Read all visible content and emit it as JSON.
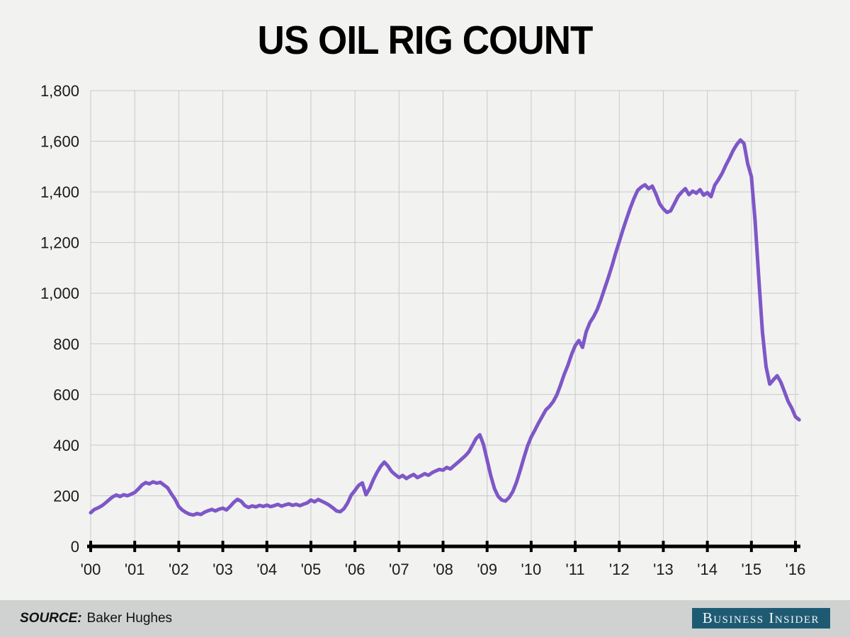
{
  "title": "US OIL RIG COUNT",
  "footer": {
    "source_label": "SOURCE:",
    "source_value": "Baker Hughes",
    "brand": "Business Insider"
  },
  "colors": {
    "background": "#f2f2f1",
    "grid": "#c9c9c9",
    "axis": "#000000",
    "line": "#7e57c7",
    "footer_bar": "#cfd2d1",
    "brand_bg": "#1e5b73",
    "brand_text": "#f3f6f6"
  },
  "chart_data": {
    "type": "line",
    "title": "US OIL RIG COUNT",
    "xlabel": "",
    "ylabel": "",
    "grid": true,
    "legend": "none",
    "source": "Baker Hughes",
    "ylim": [
      0,
      1800
    ],
    "xlim_years": [
      2000,
      2016.1
    ],
    "x_unit": "year",
    "x_tick_labels": [
      "'00",
      "'01",
      "'02",
      "'03",
      "'04",
      "'05",
      "'06",
      "'07",
      "'08",
      "'09",
      "'10",
      "'11",
      "'12",
      "'13",
      "'14",
      "'15",
      "'16"
    ],
    "y_ticks": [
      {
        "value": 0,
        "label": "0"
      },
      {
        "value": 200,
        "label": "200"
      },
      {
        "value": 400,
        "label": "400"
      },
      {
        "value": 600,
        "label": "600"
      },
      {
        "value": 800,
        "label": "800"
      },
      {
        "value": 1000,
        "label": "1,000"
      },
      {
        "value": 1200,
        "label": "1,200"
      },
      {
        "value": 1400,
        "label": "1,400"
      },
      {
        "value": 1600,
        "label": "1,600"
      },
      {
        "value": 1800,
        "label": "1,800"
      }
    ],
    "series": [
      {
        "name": "US oil rigs",
        "color": "#7e57c7",
        "x_start_year": 2000,
        "x_interval": "monthly",
        "values": [
          133,
          146,
          152,
          160,
          171,
          184,
          196,
          203,
          197,
          204,
          200,
          206,
          213,
          227,
          243,
          252,
          247,
          255,
          250,
          253,
          242,
          231,
          207,
          186,
          157,
          143,
          134,
          127,
          124,
          130,
          126,
          135,
          141,
          146,
          140,
          147,
          151,
          144,
          158,
          174,
          186,
          178,
          161,
          154,
          160,
          156,
          162,
          158,
          163,
          157,
          161,
          166,
          159,
          164,
          168,
          162,
          166,
          161,
          167,
          172,
          183,
          176,
          185,
          178,
          171,
          163,
          152,
          140,
          137,
          149,
          172,
          203,
          221,
          241,
          251,
          204,
          229,
          263,
          292,
          316,
          333,
          317,
          296,
          283,
          272,
          280,
          268,
          277,
          284,
          272,
          279,
          287,
          281,
          291,
          298,
          304,
          301,
          312,
          306,
          319,
          331,
          344,
          357,
          373,
          399,
          426,
          441,
          403,
          341,
          279,
          228,
          198,
          183,
          179,
          193,
          217,
          253,
          299,
          349,
          396,
          432,
          459,
          487,
          513,
          539,
          553,
          572,
          599,
          637,
          679,
          715,
          758,
          793,
          813,
          786,
          848,
          884,
          907,
          936,
          974,
          1018,
          1061,
          1107,
          1158,
          1204,
          1250,
          1294,
          1336,
          1374,
          1406,
          1419,
          1428,
          1413,
          1423,
          1391,
          1353,
          1333,
          1319,
          1325,
          1353,
          1382,
          1399,
          1413,
          1389,
          1403,
          1395,
          1409,
          1387,
          1397,
          1381,
          1426,
          1448,
          1473,
          1504,
          1532,
          1563,
          1587,
          1605,
          1591,
          1511,
          1460,
          1287,
          1060,
          846,
          710,
          641,
          658,
          674,
          649,
          611,
          573,
          546,
          512,
          500
        ]
      }
    ]
  }
}
